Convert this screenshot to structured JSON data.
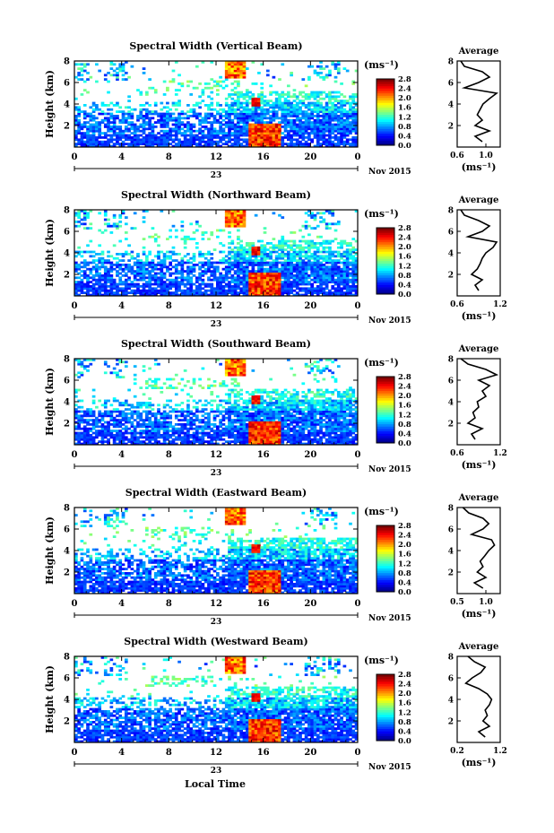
{
  "figure": {
    "xlabel": "Local Time",
    "date_label": "Nov 2015",
    "day_label": "23",
    "colorbar_unit": "(ms⁻¹)",
    "colorbar_ticks": [
      "0.0",
      "0.4",
      "0.8",
      "1.2",
      "1.6",
      "2.0",
      "2.4",
      "2.8"
    ],
    "avg_xlabel": "(ms⁻¹)",
    "avg_title": "Average"
  },
  "colors": {
    "jet": [
      "#00008f",
      "#0000ff",
      "#0080ff",
      "#00ffff",
      "#80ff80",
      "#ffff00",
      "#ff8000",
      "#ff0000",
      "#800000"
    ]
  },
  "chart_data": [
    {
      "type": "heatmap",
      "title": "Spectral Width (Vertical Beam)",
      "ylabel": "Height (km)",
      "x_ticks": [
        "0",
        "4",
        "8",
        "12",
        "16",
        "20",
        "0"
      ],
      "y_ticks": [
        "2",
        "4",
        "6",
        "8"
      ],
      "xlim": [
        0,
        24
      ],
      "ylim": [
        0,
        8
      ],
      "colorbar_range": [
        0,
        2.8
      ],
      "average_profile": {
        "xlim": [
          0.6,
          1.2
        ],
        "x_ticks": [
          "0.6",
          "1.0"
        ],
        "heights": [
          0.5,
          1.0,
          1.5,
          2.0,
          2.5,
          3.0,
          3.5,
          4.0,
          4.5,
          5.0,
          5.5,
          6.0,
          6.5,
          7.0,
          7.5,
          8.0
        ],
        "values": [
          0.95,
          0.85,
          1.05,
          0.85,
          0.95,
          0.88,
          0.92,
          0.96,
          1.05,
          1.15,
          0.7,
          0.9,
          1.05,
          0.95,
          0.7,
          0.65
        ]
      }
    },
    {
      "type": "heatmap",
      "title": "Spectral Width (Northward Beam)",
      "ylabel": "Height (km)",
      "x_ticks": [
        "0",
        "4",
        "8",
        "12",
        "16",
        "20",
        "0"
      ],
      "y_ticks": [
        "2",
        "4",
        "6",
        "8"
      ],
      "xlim": [
        0,
        24
      ],
      "ylim": [
        0,
        8
      ],
      "colorbar_range": [
        0,
        2.8
      ],
      "average_profile": {
        "xlim": [
          0.6,
          1.2
        ],
        "x_ticks": [
          "0.6",
          "1.2"
        ],
        "heights": [
          0.5,
          1.0,
          1.5,
          2.0,
          2.5,
          3.0,
          3.5,
          4.0,
          4.5,
          5.0,
          5.5,
          6.0,
          6.5,
          7.0,
          7.5,
          8.0
        ],
        "values": [
          0.9,
          0.85,
          0.95,
          0.8,
          0.88,
          0.92,
          0.95,
          1.0,
          1.1,
          1.15,
          0.75,
          0.95,
          1.05,
          0.9,
          0.7,
          0.65
        ]
      }
    },
    {
      "type": "heatmap",
      "title": "Spectral Width (Southward Beam)",
      "ylabel": "Height (km)",
      "x_ticks": [
        "0",
        "4",
        "8",
        "12",
        "16",
        "20",
        "0"
      ],
      "y_ticks": [
        "2",
        "4",
        "6",
        "8"
      ],
      "xlim": [
        0,
        24
      ],
      "ylim": [
        0,
        8
      ],
      "colorbar_range": [
        0,
        2.8
      ],
      "average_profile": {
        "xlim": [
          0.6,
          1.2
        ],
        "x_ticks": [
          "0.6",
          "1.2"
        ],
        "heights": [
          0.5,
          1.0,
          1.5,
          2.0,
          2.5,
          3.0,
          3.5,
          4.0,
          4.5,
          5.0,
          5.5,
          6.0,
          6.5,
          7.0,
          7.5,
          8.0
        ],
        "values": [
          0.85,
          0.8,
          0.95,
          0.75,
          0.85,
          0.82,
          0.9,
          0.88,
          1.0,
          0.95,
          1.05,
          0.9,
          1.15,
          1.0,
          0.75,
          0.65
        ]
      }
    },
    {
      "type": "heatmap",
      "title": "Spectral Width (Eastward Beam)",
      "ylabel": "Height (km)",
      "x_ticks": [
        "0",
        "4",
        "8",
        "12",
        "16",
        "20",
        "0"
      ],
      "y_ticks": [
        "2",
        "4",
        "6",
        "8"
      ],
      "xlim": [
        0,
        24
      ],
      "ylim": [
        0,
        8
      ],
      "colorbar_range": [
        0,
        2.8
      ],
      "average_profile": {
        "xlim": [
          0.5,
          1.25
        ],
        "x_ticks": [
          "0.5",
          "1.0"
        ],
        "heights": [
          0.5,
          1.0,
          1.5,
          2.0,
          2.5,
          3.0,
          3.5,
          4.0,
          4.5,
          5.0,
          5.5,
          6.0,
          6.5,
          7.0,
          7.5,
          8.0
        ],
        "values": [
          0.95,
          0.8,
          1.0,
          0.85,
          0.95,
          0.9,
          0.98,
          1.05,
          1.15,
          1.1,
          0.75,
          0.95,
          1.05,
          0.95,
          0.7,
          0.6
        ]
      }
    },
    {
      "type": "heatmap",
      "title": "Spectral Width (Westward Beam)",
      "ylabel": "Height (km)",
      "x_ticks": [
        "0",
        "4",
        "8",
        "12",
        "16",
        "20",
        "0"
      ],
      "y_ticks": [
        "2",
        "4",
        "6",
        "8"
      ],
      "xlim": [
        0,
        24
      ],
      "ylim": [
        0,
        8
      ],
      "colorbar_range": [
        0,
        2.8
      ],
      "average_profile": {
        "xlim": [
          0.2,
          1.2
        ],
        "x_ticks": [
          "0.2",
          "1.2"
        ],
        "heights": [
          0.5,
          1.0,
          1.5,
          2.0,
          2.5,
          3.0,
          3.5,
          4.0,
          4.5,
          5.0,
          5.5,
          6.0,
          6.5,
          7.0,
          7.5,
          8.0
        ],
        "values": [
          0.85,
          0.7,
          0.95,
          0.8,
          0.9,
          0.85,
          0.95,
          1.0,
          0.9,
          0.7,
          0.4,
          0.55,
          0.75,
          0.85,
          0.6,
          0.45
        ]
      }
    }
  ]
}
